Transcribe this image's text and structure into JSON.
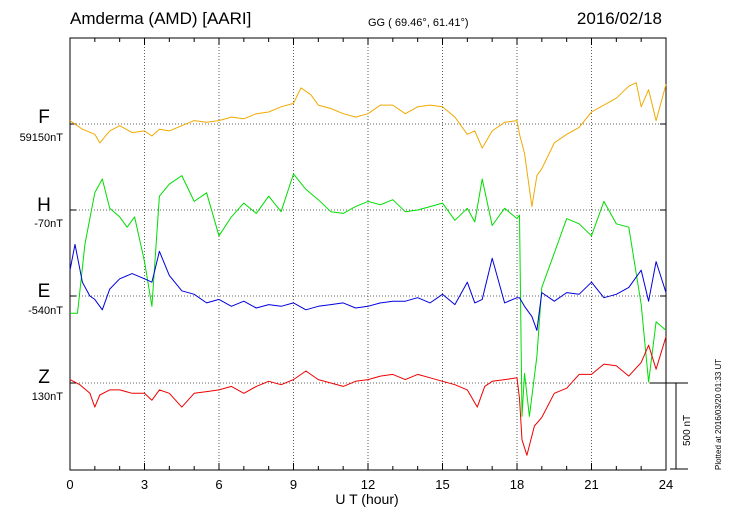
{
  "header": {
    "station": "Amderma (AMD)  [AARI]",
    "coords": "GG ( 69.46°,  61.41°)",
    "date": "2016/02/18"
  },
  "components": [
    {
      "letter": "F",
      "baseline": "59150nT",
      "color": "#f0aa00"
    },
    {
      "letter": "H",
      "baseline": "-70nT",
      "color": "#00dd00"
    },
    {
      "letter": "E",
      "baseline": "-540nT",
      "color": "#0000dd"
    },
    {
      "letter": "Z",
      "baseline": "130nT",
      "color": "#ee0000"
    }
  ],
  "x_ticks": [
    "0",
    "3",
    "6",
    "9",
    "12",
    "15",
    "18",
    "21",
    "24"
  ],
  "xlabel": "U T (hour)",
  "scale_label": "500 nT",
  "plotted": "Plotted at 2016/03/20 01:33 UT",
  "chart_data": {
    "type": "line",
    "title": "Amderma (AMD)  [AARI]",
    "xlabel": "U T (hour)",
    "xlim": [
      0,
      24
    ],
    "scale_bar_nT": 500,
    "grid": "dotted",
    "series": [
      {
        "name": "F",
        "baseline_label": "59150nT",
        "color": "#f0aa00",
        "x": [
          0,
          0.5,
          1,
          1.2,
          1.6,
          2,
          2.5,
          3,
          3.3,
          3.6,
          4,
          4.5,
          5,
          5.5,
          6,
          6.5,
          7,
          7.5,
          8,
          8.5,
          9,
          9.3,
          9.7,
          10,
          10.5,
          11,
          11.5,
          12,
          12.5,
          13,
          13.5,
          14,
          14.5,
          15,
          15.5,
          16,
          16.3,
          16.6,
          17,
          17.5,
          18,
          18.1,
          18.3,
          18.6,
          18.8,
          19,
          19.5,
          20,
          20.5,
          21,
          21.5,
          22,
          22.5,
          22.8,
          23,
          23.3,
          23.6,
          24
        ],
        "y": [
          20,
          -30,
          -60,
          -110,
          -40,
          -10,
          -50,
          -40,
          -70,
          -30,
          -40,
          -10,
          20,
          10,
          20,
          40,
          30,
          60,
          70,
          100,
          120,
          210,
          170,
          110,
          90,
          60,
          40,
          60,
          110,
          110,
          60,
          100,
          110,
          100,
          40,
          -60,
          -40,
          -140,
          -40,
          10,
          20,
          -60,
          -170,
          -480,
          -300,
          -260,
          -110,
          -60,
          -20,
          70,
          110,
          150,
          220,
          240,
          100,
          200,
          20,
          230
        ]
      },
      {
        "name": "H",
        "baseline_label": "-70nT",
        "color": "#00dd00",
        "x": [
          0,
          0.3,
          0.6,
          1,
          1.3,
          1.6,
          2,
          2.3,
          2.6,
          3,
          3.3,
          3.6,
          4,
          4.5,
          5,
          5.5,
          6,
          6.5,
          7,
          7.5,
          8,
          8.5,
          9,
          9.5,
          10,
          10.5,
          11,
          11.5,
          12,
          12.5,
          13,
          13.5,
          14,
          14.5,
          15,
          15.5,
          16,
          16.3,
          16.6,
          17,
          17.5,
          18,
          18.1,
          18.2,
          18.3,
          18.5,
          18.8,
          19,
          19.5,
          20,
          20.5,
          21,
          21.5,
          22,
          22.5,
          23,
          23.3,
          23.6,
          24
        ],
        "y": [
          -600,
          -600,
          -200,
          100,
          180,
          10,
          -40,
          -100,
          -40,
          -300,
          -560,
          80,
          150,
          200,
          50,
          100,
          -150,
          -40,
          40,
          -20,
          80,
          -10,
          210,
          120,
          60,
          -10,
          -20,
          20,
          50,
          30,
          60,
          -10,
          0,
          20,
          40,
          -60,
          10,
          -70,
          180,
          -90,
          10,
          -50,
          -30,
          -1200,
          -950,
          -1200,
          -850,
          -450,
          -250,
          -50,
          -80,
          -150,
          50,
          -80,
          -100,
          -550,
          -1000,
          -650,
          -700
        ]
      },
      {
        "name": "E",
        "baseline_label": "-540nT",
        "color": "#0000dd",
        "x": [
          0,
          0.2,
          0.5,
          0.8,
          1,
          1.3,
          1.6,
          2,
          2.5,
          3,
          3.3,
          3.6,
          4,
          4.5,
          5,
          5.5,
          6,
          6.5,
          7,
          7.5,
          8,
          8.5,
          9,
          9.5,
          10,
          10.5,
          11,
          11.5,
          12,
          12.5,
          13,
          13.5,
          14,
          14.5,
          15,
          15.5,
          16,
          16.3,
          16.6,
          17,
          17.5,
          18,
          18.1,
          18.3,
          18.6,
          18.8,
          19,
          19.5,
          20,
          20.5,
          21,
          21.5,
          22,
          22.5,
          23,
          23.3,
          23.6,
          24
        ],
        "y": [
          150,
          300,
          80,
          0,
          -20,
          -80,
          40,
          100,
          130,
          100,
          80,
          260,
          120,
          30,
          10,
          -40,
          -20,
          -60,
          -30,
          -70,
          -50,
          -60,
          -40,
          -80,
          -60,
          -50,
          -40,
          -70,
          -60,
          -40,
          -30,
          -30,
          -10,
          -40,
          10,
          -50,
          80,
          -40,
          -20,
          220,
          -40,
          -10,
          -10,
          -60,
          -120,
          -200,
          20,
          -30,
          20,
          10,
          80,
          -10,
          10,
          50,
          150,
          -30,
          200,
          20
        ]
      },
      {
        "name": "Z",
        "baseline_label": "130nT",
        "color": "#ee0000",
        "x": [
          0,
          0.4,
          0.8,
          1,
          1.2,
          1.6,
          2,
          2.5,
          3,
          3.3,
          3.6,
          4,
          4.5,
          5,
          5.5,
          6,
          6.5,
          7,
          7.5,
          8,
          8.5,
          9,
          9.5,
          10,
          10.5,
          11,
          11.5,
          12,
          12.5,
          13,
          13.5,
          14,
          14.5,
          15,
          15.5,
          16,
          16.4,
          16.7,
          17,
          17.5,
          18,
          18.1,
          18.2,
          18.4,
          18.7,
          19,
          19.5,
          20,
          20.5,
          21,
          21.5,
          22,
          22.5,
          23,
          23.3,
          23.6,
          24
        ],
        "y": [
          20,
          -10,
          -60,
          -140,
          -70,
          -40,
          -40,
          -60,
          -60,
          -100,
          -40,
          -60,
          -140,
          -60,
          -50,
          -40,
          -20,
          -60,
          -20,
          10,
          -10,
          20,
          70,
          20,
          0,
          -20,
          10,
          20,
          40,
          50,
          20,
          50,
          30,
          10,
          -10,
          -40,
          -140,
          -20,
          10,
          20,
          30,
          -90,
          -330,
          -420,
          -250,
          -200,
          -60,
          -30,
          50,
          50,
          110,
          100,
          40,
          120,
          220,
          80,
          270
        ]
      }
    ]
  }
}
